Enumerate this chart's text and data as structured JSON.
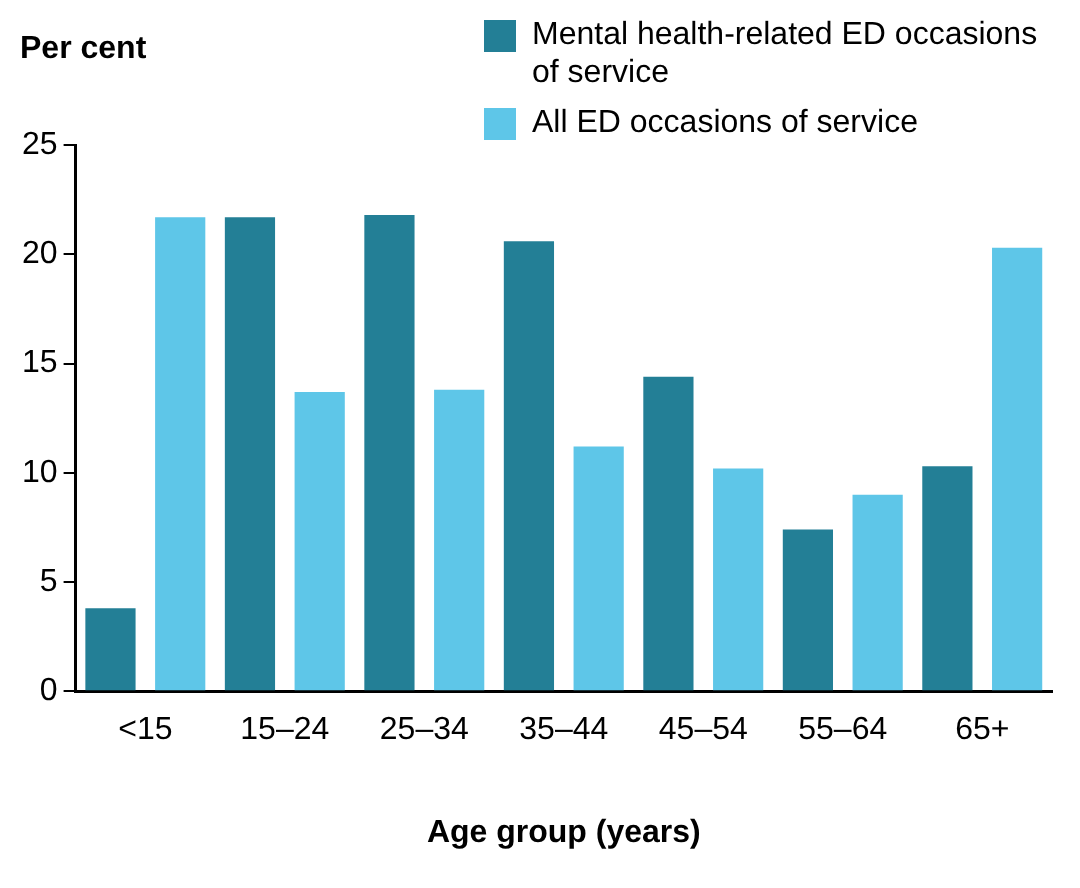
{
  "chart_data": {
    "type": "bar",
    "xlabel": "Age group (years)",
    "ylabel": "Per cent",
    "categories": [
      "<15",
      "15–24",
      "25–34",
      "35–44",
      "45–54",
      "55–64",
      "65+"
    ],
    "series": [
      {
        "name": "Mental health-related ED occasions of service",
        "color": "#237f96",
        "values": [
          3.8,
          21.7,
          21.8,
          20.6,
          14.4,
          7.4,
          10.3
        ]
      },
      {
        "name": "All ED occasions of service",
        "color": "#5ec6e8",
        "values": [
          21.7,
          13.7,
          13.8,
          11.2,
          10.2,
          9.0,
          20.3
        ]
      }
    ],
    "ylim": [
      0,
      25
    ],
    "yticks": [
      0,
      5,
      10,
      15,
      20,
      25
    ],
    "grid": false,
    "legend": "top right"
  }
}
